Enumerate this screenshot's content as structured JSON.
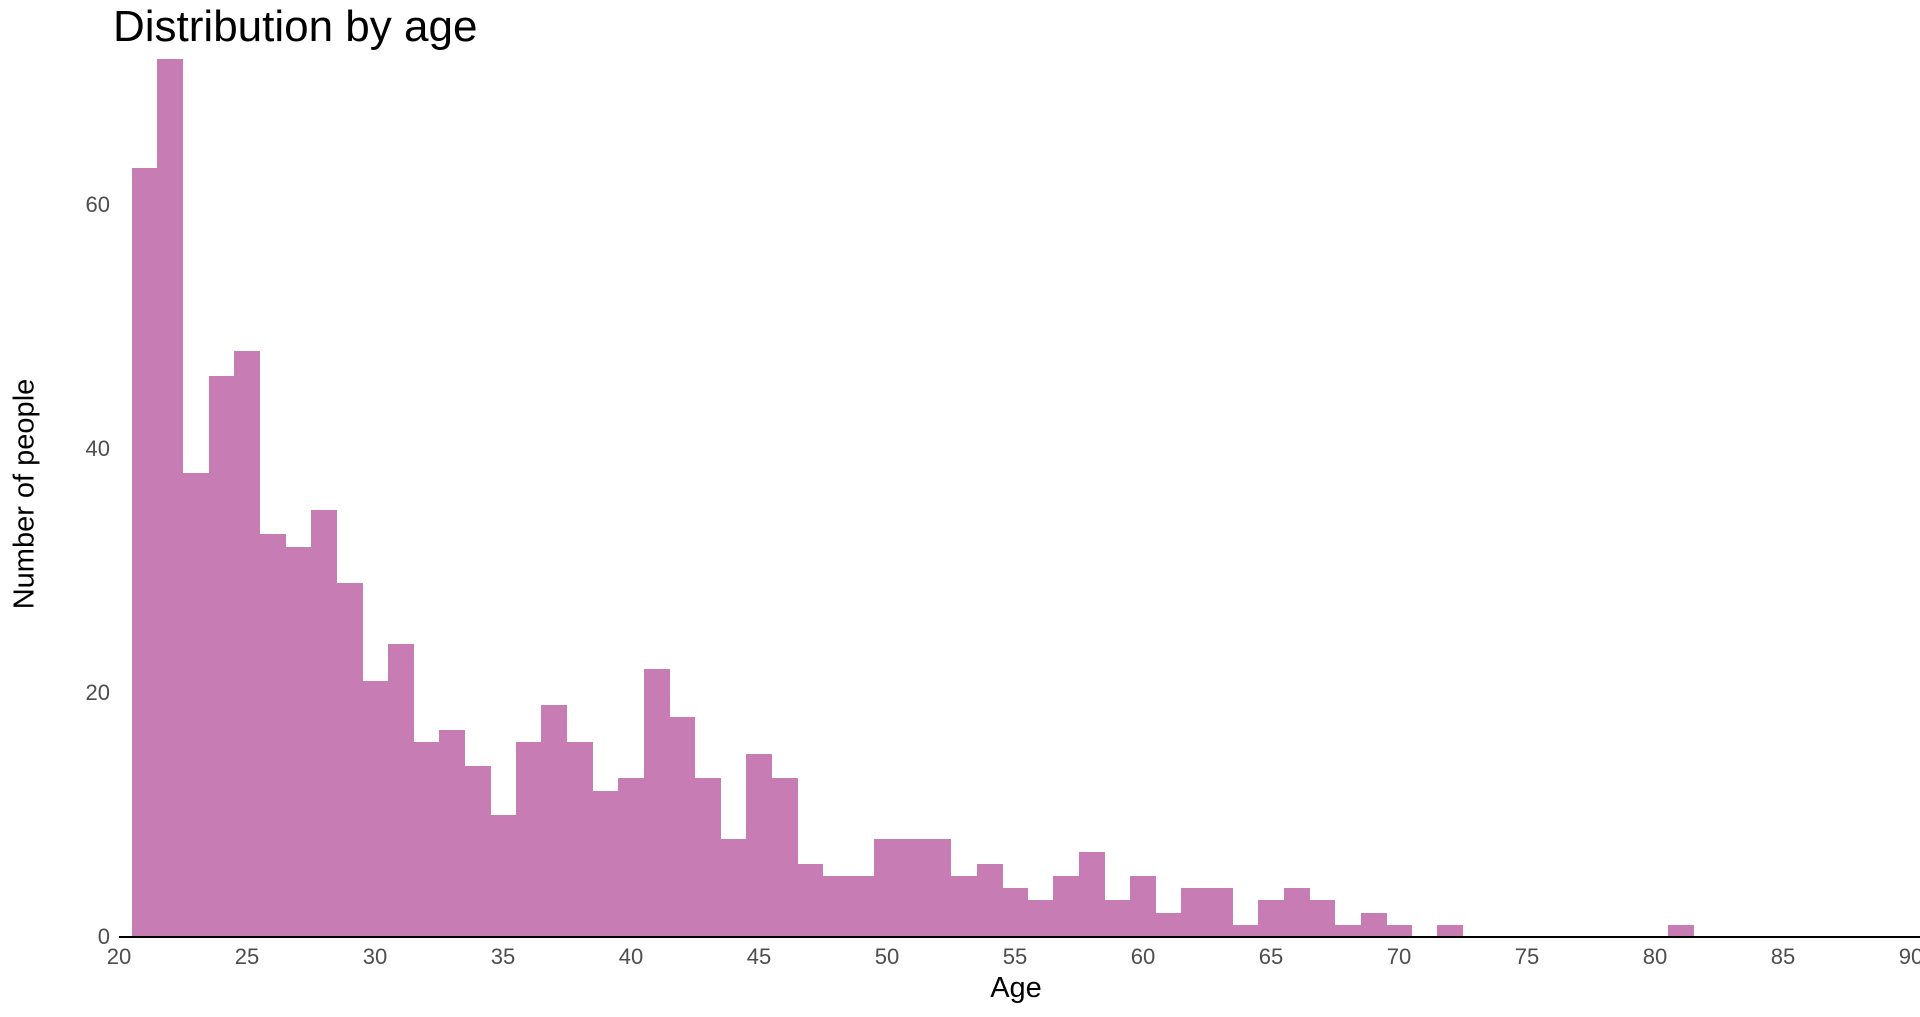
{
  "chart_data": {
    "type": "bar",
    "subtype": "histogram",
    "title": "Distribution by age",
    "xlabel": "Age",
    "ylabel": "Number of people",
    "bin_width": 1,
    "bin_centers": [
      21,
      22,
      23,
      24,
      25,
      26,
      27,
      28,
      29,
      30,
      31,
      32,
      33,
      34,
      35,
      36,
      37,
      38,
      39,
      40,
      41,
      42,
      43,
      44,
      45,
      46,
      47,
      48,
      49,
      50,
      51,
      52,
      53,
      54,
      55,
      56,
      57,
      58,
      59,
      60,
      61,
      62,
      63,
      64,
      65,
      66,
      67,
      68,
      69,
      70,
      71,
      72,
      73,
      74,
      75,
      76,
      77,
      78,
      79,
      80,
      81
    ],
    "values": [
      63,
      72,
      38,
      46,
      48,
      33,
      32,
      35,
      29,
      21,
      24,
      16,
      17,
      14,
      10,
      16,
      19,
      16,
      12,
      13,
      22,
      18,
      13,
      8,
      15,
      13,
      6,
      5,
      5,
      8,
      8,
      8,
      5,
      6,
      4,
      3,
      5,
      7,
      3,
      5,
      2,
      4,
      4,
      1,
      3,
      4,
      3,
      1,
      2,
      1,
      0,
      1,
      0,
      0,
      0,
      0,
      0,
      0,
      0,
      0,
      1
    ],
    "x_ticks": [
      20,
      25,
      30,
      35,
      40,
      45,
      50,
      55,
      60,
      65,
      70,
      75,
      80,
      85,
      90
    ],
    "y_ticks": [
      0,
      20,
      40,
      60
    ],
    "xlim": [
      20,
      90
    ],
    "ylim": [
      0,
      77
    ],
    "grid": "off",
    "legend": "none",
    "bar_color": "#c77db4",
    "axis_line_color": "#000000",
    "tick_label_color": "#4d4d4d",
    "text_color": "#000000",
    "background_color": "#ffffff"
  }
}
